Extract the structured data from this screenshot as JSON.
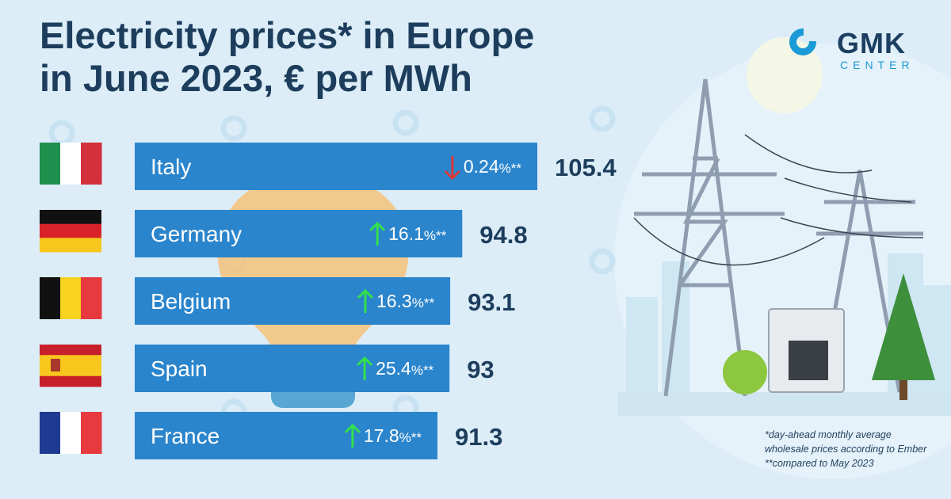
{
  "header": {
    "title_line1": "Electricity prices* in Europe",
    "title_line2": "in June 2023, € per MWh"
  },
  "logo": {
    "main": "GMK",
    "sub": "CENTER",
    "icon": "gmk-ring-logo-icon",
    "color": "#1a9ad6"
  },
  "illustration": {
    "items": [
      "light-bulb-icon",
      "power-pylon-icon",
      "transformer-icon",
      "tree-icon"
    ]
  },
  "footnotes": [
    "*day-ahead monthly average",
    "wholesale prices according to Ember",
    "**compared to May 2023"
  ],
  "chart_data": {
    "type": "bar",
    "orientation": "horizontal",
    "title": "Electricity prices* in Europe in June 2023, € per MWh",
    "categories": [
      "Italy",
      "Germany",
      "Belgium",
      "Spain",
      "France"
    ],
    "values": [
      105.4,
      94.8,
      93.1,
      93,
      91.3
    ],
    "value_labels": [
      "105.4",
      "94.8",
      "93.1",
      "93",
      "91.3"
    ],
    "changes": [
      {
        "direction": "down",
        "text": "0.24",
        "suffix": "%**"
      },
      {
        "direction": "up",
        "text": "16.1",
        "suffix": "%**"
      },
      {
        "direction": "up",
        "text": "16.3",
        "suffix": "%**"
      },
      {
        "direction": "up",
        "text": "25.4",
        "suffix": "%**"
      },
      {
        "direction": "up",
        "text": "17.8",
        "suffix": "%**"
      }
    ],
    "flags": [
      "italy-flag-icon",
      "germany-flag-icon",
      "belgium-flag-icon",
      "spain-flag-icon",
      "france-flag-icon"
    ],
    "colors": {
      "bar": "#2b85cc",
      "up": "#33e04d",
      "down": "#d83a3a",
      "value": "#1d3d5c"
    }
  }
}
